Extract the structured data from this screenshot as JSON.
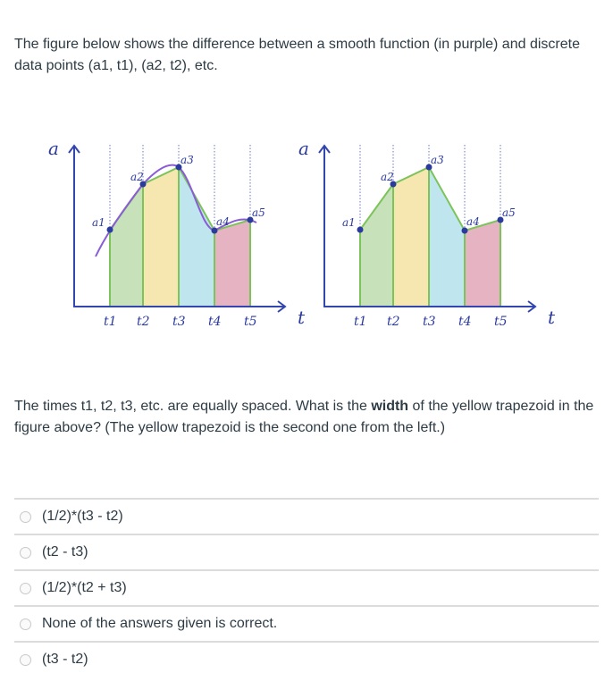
{
  "intro_text": "The figure below shows the difference between a smooth function (in purple) and discrete data points (a1, t1), (a2, t2), etc.",
  "figure": {
    "y_axis_label": "a",
    "x_axis_label": "t",
    "point_labels": [
      "a1",
      "a2",
      "a3",
      "a4",
      "a5"
    ],
    "time_labels": [
      "t1",
      "t2",
      "t3",
      "t4",
      "t5"
    ],
    "colors": {
      "curve": "#8a5cd6",
      "edges": "#7cc35a",
      "axes": "#3346b0",
      "green": "#c7e1bb",
      "yellow": "#f6e6b0",
      "blue": "#bfe6ef",
      "pink": "#e6b3c3"
    }
  },
  "question_text_before": "The times t1, t2, t3, etc. are equally spaced. What is the ",
  "question_bold": "width",
  "question_text_after": " of the yellow trapezoid  in the figure above? (The yellow trapezoid is the second one from the left.)",
  "options": [
    "(1/2)*(t3 - t2)",
    "(t2 - t3)",
    "(1/2)*(t2 + t3)",
    "None of the answers given is correct.",
    "(t3 - t2)"
  ]
}
